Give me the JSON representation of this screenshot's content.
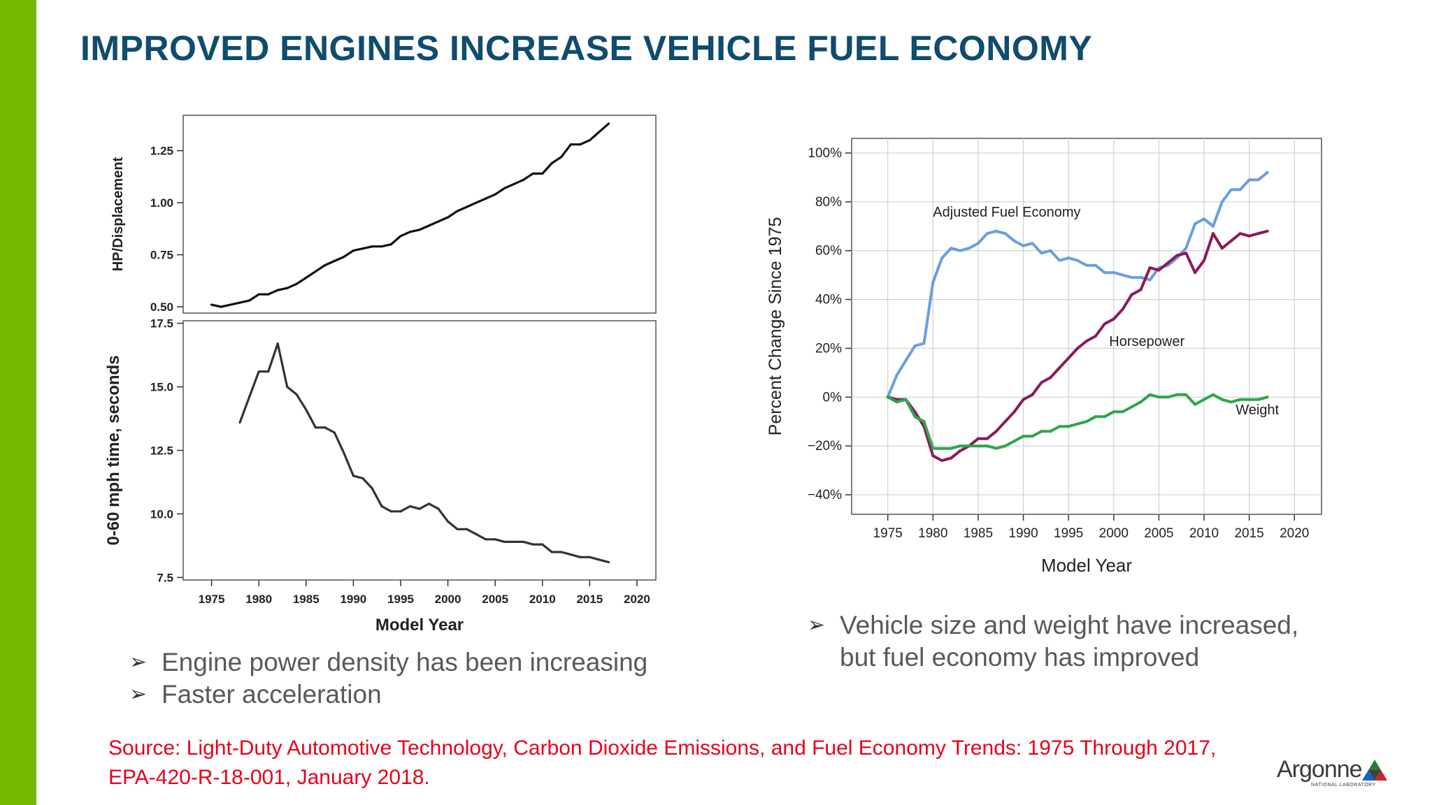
{
  "slide": {
    "title": "IMPROVED ENGINES INCREASE VEHICLE FUEL ECONOMY",
    "title_color": "#0f4c6e",
    "accent_color": "#76b900",
    "source": "Source: Light-Duty Automotive Technology, Carbon Dioxide Emissions, and Fuel Economy Trends: 1975 Through 2017, EPA-420-R-18-001, January 2018.",
    "source_color": "#e8001c",
    "bullets_left": [
      "Engine power density has been increasing",
      "Faster acceleration"
    ],
    "bullets_right": [
      "Vehicle size and weight have increased, but fuel economy has improved"
    ],
    "logo": {
      "name": "Argonne",
      "subtitle": "NATIONAL LABORATORY",
      "icon": "argonne-triangle-icon"
    }
  },
  "chart_data": [
    {
      "type": "line",
      "ylabel": "HP/Displacement",
      "xlim": [
        1972,
        2022
      ],
      "ylim": [
        0.47,
        1.42
      ],
      "yticks": [
        0.5,
        0.75,
        1.0,
        1.25
      ],
      "ytick_labels": [
        "0.50",
        "0.75",
        "1.00",
        "1.25"
      ],
      "line_color": "#111111",
      "series": [
        {
          "x": [
            1975,
            1976,
            1977,
            1978,
            1979,
            1980,
            1981,
            1982,
            1983,
            1984,
            1985,
            1986,
            1987,
            1988,
            1989,
            1990,
            1991,
            1992,
            1993,
            1994,
            1995,
            1996,
            1997,
            1998,
            1999,
            2000,
            2001,
            2002,
            2003,
            2004,
            2005,
            2006,
            2007,
            2008,
            2009,
            2010,
            2011,
            2012,
            2013,
            2014,
            2015,
            2016,
            2017
          ],
          "values": [
            0.51,
            0.5,
            0.51,
            0.52,
            0.53,
            0.56,
            0.56,
            0.58,
            0.59,
            0.61,
            0.64,
            0.67,
            0.7,
            0.72,
            0.74,
            0.77,
            0.78,
            0.79,
            0.79,
            0.8,
            0.84,
            0.86,
            0.87,
            0.89,
            0.91,
            0.93,
            0.96,
            0.98,
            1.0,
            1.02,
            1.04,
            1.07,
            1.09,
            1.11,
            1.14,
            1.14,
            1.19,
            1.22,
            1.28,
            1.28,
            1.3,
            1.34,
            1.38
          ]
        }
      ]
    },
    {
      "type": "line",
      "xlabel": "Model Year",
      "ylabel": "0-60 mph time, seconds",
      "xlim": [
        1972,
        2022
      ],
      "ylim": [
        7.4,
        17.6
      ],
      "xticks": [
        1975,
        1980,
        1985,
        1990,
        1995,
        2000,
        2005,
        2010,
        2015,
        2020
      ],
      "xtick_labels": [
        "1975",
        "1980",
        "1985",
        "1990",
        "1995",
        "2000",
        "2005",
        "2010",
        "2015",
        "2020"
      ],
      "yticks": [
        7.5,
        10.0,
        12.5,
        15.0,
        17.5
      ],
      "ytick_labels": [
        "7.5",
        "10.0",
        "12.5",
        "15.0",
        "17.5"
      ],
      "line_color": "#333333",
      "series": [
        {
          "x": [
            1978,
            1979,
            1980,
            1981,
            1982,
            1983,
            1984,
            1985,
            1986,
            1987,
            1988,
            1989,
            1990,
            1991,
            1992,
            1993,
            1994,
            1995,
            1996,
            1997,
            1998,
            1999,
            2000,
            2001,
            2002,
            2003,
            2004,
            2005,
            2006,
            2007,
            2008,
            2009,
            2010,
            2011,
            2012,
            2013,
            2014,
            2015,
            2016,
            2017
          ],
          "values": [
            13.6,
            14.6,
            15.6,
            15.6,
            16.7,
            15.0,
            14.7,
            14.1,
            13.4,
            13.4,
            13.2,
            12.4,
            11.5,
            11.4,
            11.0,
            10.3,
            10.1,
            10.1,
            10.3,
            10.2,
            10.4,
            10.2,
            9.7,
            9.4,
            9.4,
            9.2,
            9.0,
            9.0,
            8.9,
            8.9,
            8.9,
            8.8,
            8.8,
            8.5,
            8.5,
            8.4,
            8.3,
            8.3,
            8.2,
            8.1
          ]
        }
      ]
    },
    {
      "type": "line",
      "xlabel": "Model Year",
      "ylabel": "Percent Change Since 1975",
      "xlim": [
        1971,
        2023
      ],
      "ylim": [
        -48,
        106
      ],
      "xticks": [
        1975,
        1980,
        1985,
        1990,
        1995,
        2000,
        2005,
        2010,
        2015,
        2020
      ],
      "xtick_labels": [
        "1975",
        "1980",
        "1985",
        "1990",
        "1995",
        "2000",
        "2005",
        "2010",
        "2015",
        "2020"
      ],
      "yticks": [
        -40,
        -20,
        0,
        20,
        40,
        60,
        80,
        100
      ],
      "ytick_labels": [
        "−40%",
        "−20%",
        "0%",
        "20%",
        "40%",
        "60%",
        "80%",
        "100%"
      ],
      "grid": true,
      "annotations": [
        {
          "text": "Adjusted Fuel Economy",
          "x": 1980,
          "y": 74
        },
        {
          "text": "Horsepower",
          "x": 1999.5,
          "y": 21
        },
        {
          "text": "Weight",
          "x": 2013.5,
          "y": -7
        }
      ],
      "series": [
        {
          "color": "#6a9ee0",
          "x": [
            1975,
            1976,
            1977,
            1978,
            1979,
            1980,
            1981,
            1982,
            1983,
            1984,
            1985,
            1986,
            1987,
            1988,
            1989,
            1990,
            1991,
            1992,
            1993,
            1994,
            1995,
            1996,
            1997,
            1998,
            1999,
            2000,
            2001,
            2002,
            2003,
            2004,
            2005,
            2006,
            2007,
            2008,
            2009,
            2010,
            2011,
            2012,
            2013,
            2014,
            2015,
            2016,
            2017
          ],
          "values": [
            0,
            9,
            15,
            21,
            22,
            47,
            57,
            61,
            60,
            61,
            63,
            67,
            68,
            67,
            64,
            62,
            63,
            59,
            60,
            56,
            57,
            56,
            54,
            54,
            51,
            51,
            50,
            49,
            49,
            48,
            53,
            54,
            57,
            61,
            71,
            73,
            70,
            80,
            85,
            85,
            89,
            89,
            92
          ]
        },
        {
          "color": "#8b1a5c",
          "x": [
            1975,
            1976,
            1977,
            1978,
            1979,
            1980,
            1981,
            1982,
            1983,
            1984,
            1985,
            1986,
            1987,
            1988,
            1989,
            1990,
            1991,
            1992,
            1993,
            1994,
            1995,
            1996,
            1997,
            1998,
            1999,
            2000,
            2001,
            2002,
            2003,
            2004,
            2005,
            2006,
            2007,
            2008,
            2009,
            2010,
            2011,
            2012,
            2013,
            2014,
            2015,
            2016,
            2017
          ],
          "values": [
            0,
            -1,
            -1,
            -6,
            -12,
            -24,
            -26,
            -25,
            -22,
            -20,
            -17,
            -17,
            -14,
            -10,
            -6,
            -1,
            1,
            6,
            8,
            12,
            16,
            20,
            23,
            25,
            30,
            32,
            36,
            42,
            44,
            53,
            52,
            55,
            58,
            59,
            51,
            56,
            67,
            61,
            64,
            67,
            66,
            67,
            68
          ]
        },
        {
          "color": "#2ea64a",
          "x": [
            1975,
            1976,
            1977,
            1978,
            1979,
            1980,
            1981,
            1982,
            1983,
            1984,
            1985,
            1986,
            1987,
            1988,
            1989,
            1990,
            1991,
            1992,
            1993,
            1994,
            1995,
            1996,
            1997,
            1998,
            1999,
            2000,
            2001,
            2002,
            2003,
            2004,
            2005,
            2006,
            2007,
            2008,
            2009,
            2010,
            2011,
            2012,
            2013,
            2014,
            2015,
            2016,
            2017
          ],
          "values": [
            0,
            -2,
            -1,
            -8,
            -10,
            -21,
            -21,
            -21,
            -20,
            -20,
            -20,
            -20,
            -21,
            -20,
            -18,
            -16,
            -16,
            -14,
            -14,
            -12,
            -12,
            -11,
            -10,
            -8,
            -8,
            -6,
            -6,
            -4,
            -2,
            1,
            0,
            0,
            1,
            1,
            -3,
            -1,
            1,
            -1,
            -2,
            -1,
            -1,
            -1,
            0
          ]
        }
      ]
    }
  ]
}
